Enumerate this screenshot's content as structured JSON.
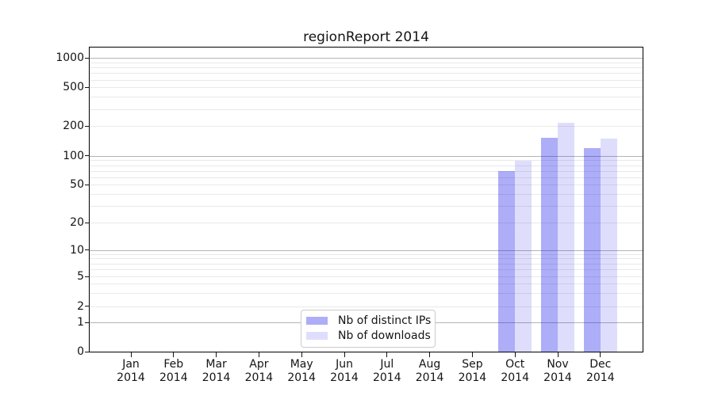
{
  "chart_data": {
    "type": "bar",
    "title": "regionReport 2014",
    "categories": [
      "Jan",
      "Feb",
      "Mar",
      "Apr",
      "May",
      "Jun",
      "Jul",
      "Aug",
      "Sep",
      "Oct",
      "Nov",
      "Dec"
    ],
    "category_year": "2014",
    "series": [
      {
        "name": "Nb of distinct IPs",
        "color": "#1414EB59",
        "values": [
          null,
          null,
          null,
          null,
          null,
          null,
          null,
          null,
          null,
          70,
          152,
          120
        ]
      },
      {
        "name": "Nb of downloads",
        "color": "#1414EB24",
        "values": [
          null,
          null,
          null,
          null,
          null,
          null,
          null,
          null,
          null,
          88,
          218,
          150
        ]
      }
    ],
    "y_scale": "symlog",
    "y_ticks": [
      0,
      1,
      2,
      5,
      10,
      20,
      50,
      100,
      200,
      500,
      1000
    ],
    "ylim": [
      0,
      1280
    ],
    "grid": true,
    "legend_position": "bottom-center",
    "colors": {
      "background": "#ffffff",
      "axis": "#141414",
      "major_grid": "#b4b4b4",
      "minor_grid": "#e9e9e9",
      "legend_border": "#cccccc"
    }
  }
}
